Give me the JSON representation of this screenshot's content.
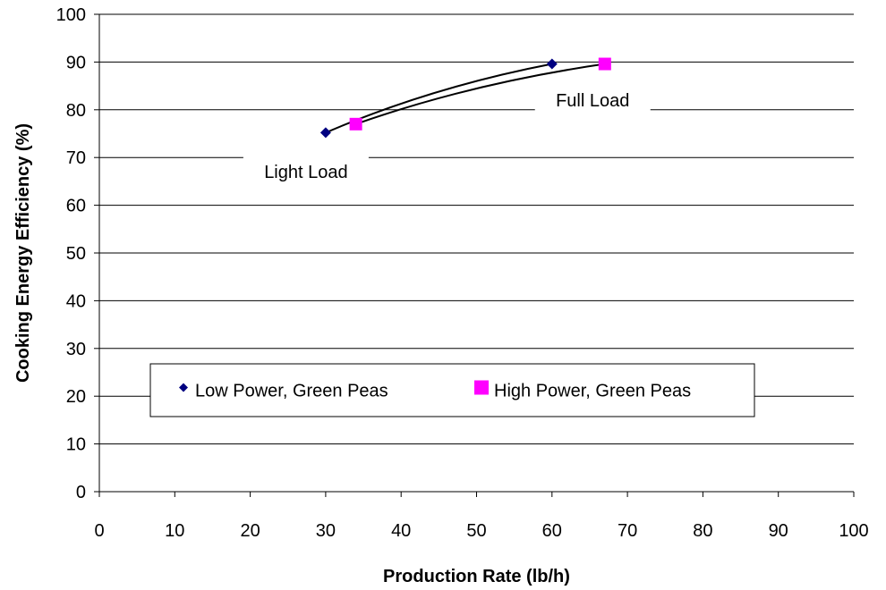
{
  "chart_data": {
    "type": "scatter",
    "xlabel": "Production Rate (lb/h)",
    "ylabel": "Cooking Energy Efficiency (%)",
    "xlim": [
      0,
      100
    ],
    "ylim": [
      0,
      100
    ],
    "xticks": [
      0,
      10,
      20,
      30,
      40,
      50,
      60,
      70,
      80,
      90,
      100
    ],
    "yticks": [
      0,
      10,
      20,
      30,
      40,
      50,
      60,
      70,
      80,
      90,
      100
    ],
    "grid": "horizontal",
    "legend_position": "bottom-center",
    "series": [
      {
        "name": "Low Power, Green Peas",
        "marker": "diamond",
        "color": "#000080",
        "x": [
          30,
          60
        ],
        "y": [
          75.2,
          89.6
        ],
        "trendline": true
      },
      {
        "name": "High Power, Green Peas",
        "marker": "square",
        "color": "#FF00FF",
        "x": [
          34,
          67
        ],
        "y": [
          77,
          89.6
        ],
        "trendline": true
      }
    ],
    "annotations": [
      {
        "text": "Light Load",
        "x": 30,
        "y": 67
      },
      {
        "text": "Full Load",
        "x": 68,
        "y": 82
      }
    ]
  }
}
